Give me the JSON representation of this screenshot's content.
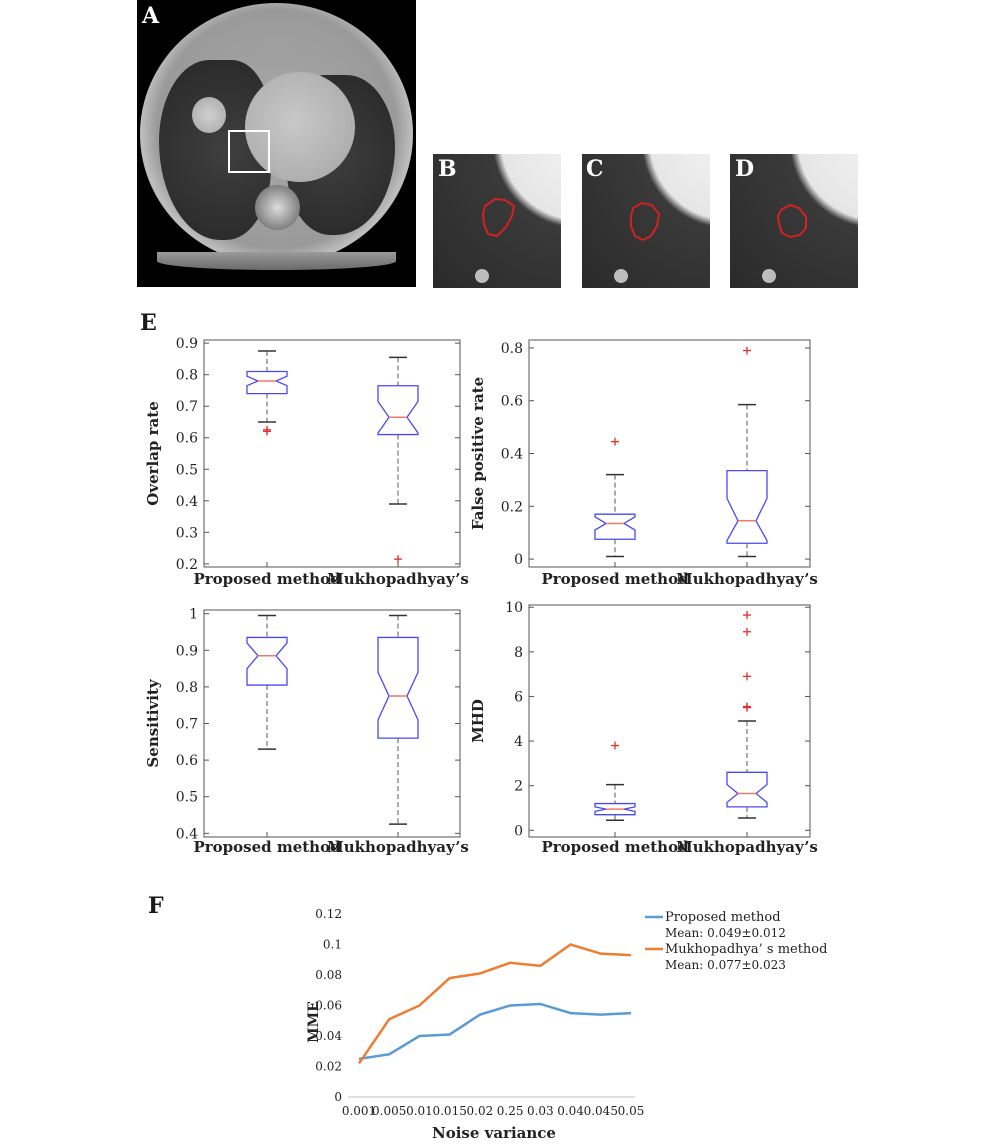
{
  "panels": {
    "a_label": "A",
    "b_label": "B",
    "c_label": "C",
    "d_label": "D",
    "e_label": "E",
    "f_label": "F"
  },
  "colors": {
    "box": "#4a4af0",
    "median": "#f07a6a",
    "whisker": "#5a5a5a",
    "outlier": "#e03030",
    "contour": "#d42020",
    "line_proposed": "#5b9bd5",
    "line_mukho": "#ed7d31"
  },
  "chart_data": [
    {
      "type": "box",
      "id": "overlap",
      "ylabel": "Overlap rate",
      "categories": [
        "Proposed method",
        "Mukhopadhyay’s"
      ],
      "yticks": [
        "0.2",
        "0.3",
        "0.4",
        "0.5",
        "0.6",
        "0.7",
        "0.8",
        "0.9"
      ],
      "ylim": [
        0.19,
        0.91
      ],
      "boxes": [
        {
          "min": 0.65,
          "q1": 0.74,
          "median": 0.78,
          "q3": 0.81,
          "max": 0.875,
          "notch": [
            0.765,
            0.795
          ],
          "outliers": [
            0.62,
            0.625
          ]
        },
        {
          "min": 0.39,
          "q1": 0.61,
          "median": 0.665,
          "q3": 0.765,
          "max": 0.855,
          "notch": [
            0.615,
            0.715
          ],
          "outliers": [
            0.215
          ]
        }
      ]
    },
    {
      "type": "box",
      "id": "fpr",
      "ylabel": "False positive rate",
      "categories": [
        "Proposed method",
        "Mukhopadhyay’s"
      ],
      "yticks": [
        "0",
        "0.2",
        "0.4",
        "0.6",
        "0.8"
      ],
      "ylim": [
        -0.03,
        0.83
      ],
      "boxes": [
        {
          "min": 0.01,
          "q1": 0.075,
          "median": 0.135,
          "q3": 0.17,
          "max": 0.32,
          "notch": [
            0.11,
            0.16
          ],
          "outliers": [
            0.445
          ]
        },
        {
          "min": 0.01,
          "q1": 0.06,
          "median": 0.145,
          "q3": 0.335,
          "max": 0.585,
          "notch": [
            0.07,
            0.23
          ],
          "outliers": [
            0.79
          ]
        }
      ]
    },
    {
      "type": "box",
      "id": "sensitivity",
      "ylabel": "Sensitivity",
      "categories": [
        "Proposed method",
        "Mukhopadhyay’s"
      ],
      "yticks": [
        "0.4",
        "0.5",
        "0.6",
        "0.7",
        "0.8",
        "0.9",
        "1"
      ],
      "ylim": [
        0.39,
        1.01
      ],
      "boxes": [
        {
          "min": 0.63,
          "q1": 0.805,
          "median": 0.885,
          "q3": 0.935,
          "max": 0.995,
          "notch": [
            0.85,
            0.92
          ],
          "outliers": []
        },
        {
          "min": 0.425,
          "q1": 0.66,
          "median": 0.775,
          "q3": 0.935,
          "max": 0.995,
          "notch": [
            0.71,
            0.84
          ],
          "outliers": []
        }
      ]
    },
    {
      "type": "box",
      "id": "mhd",
      "ylabel": "MHD",
      "categories": [
        "Proposed method",
        "Mukhopadhyay’s"
      ],
      "yticks": [
        "0",
        "2",
        "4",
        "6",
        "8",
        "10"
      ],
      "ylim": [
        -0.3,
        10.1
      ],
      "boxes": [
        {
          "min": 0.45,
          "q1": 0.7,
          "median": 0.95,
          "q3": 1.2,
          "max": 2.05,
          "notch": [
            0.85,
            1.05
          ],
          "outliers": [
            3.8
          ]
        },
        {
          "min": 0.55,
          "q1": 1.05,
          "median": 1.65,
          "q3": 2.6,
          "max": 4.9,
          "notch": [
            1.25,
            2.05
          ],
          "outliers": [
            5.5,
            5.55,
            6.9,
            8.9,
            9.65
          ]
        }
      ]
    },
    {
      "type": "line",
      "id": "mme",
      "ylabel": "MME",
      "xlabel": "Noise variance",
      "x": [
        "0.001",
        "0.005",
        "0.01",
        "0.015",
        "0.02",
        "0.25",
        "0.03",
        "0.04",
        "0.045",
        "0.05"
      ],
      "yticks": [
        "0",
        "0.02",
        "0.04",
        "0.06",
        "0.08",
        "0.1",
        "0.12"
      ],
      "ylim": [
        0,
        0.12
      ],
      "series": [
        {
          "name": "Proposed method",
          "mean_label": "Mean: 0.049±0.012",
          "values": [
            0.025,
            0.028,
            0.04,
            0.041,
            0.054,
            0.06,
            0.061,
            0.055,
            0.054,
            0.055
          ]
        },
        {
          "name": "Mukhopadhya’ s method",
          "mean_label": "Mean: 0.077±0.023",
          "values": [
            0.022,
            0.051,
            0.06,
            0.078,
            0.081,
            0.088,
            0.086,
            0.1,
            0.094,
            0.093
          ]
        }
      ]
    }
  ]
}
